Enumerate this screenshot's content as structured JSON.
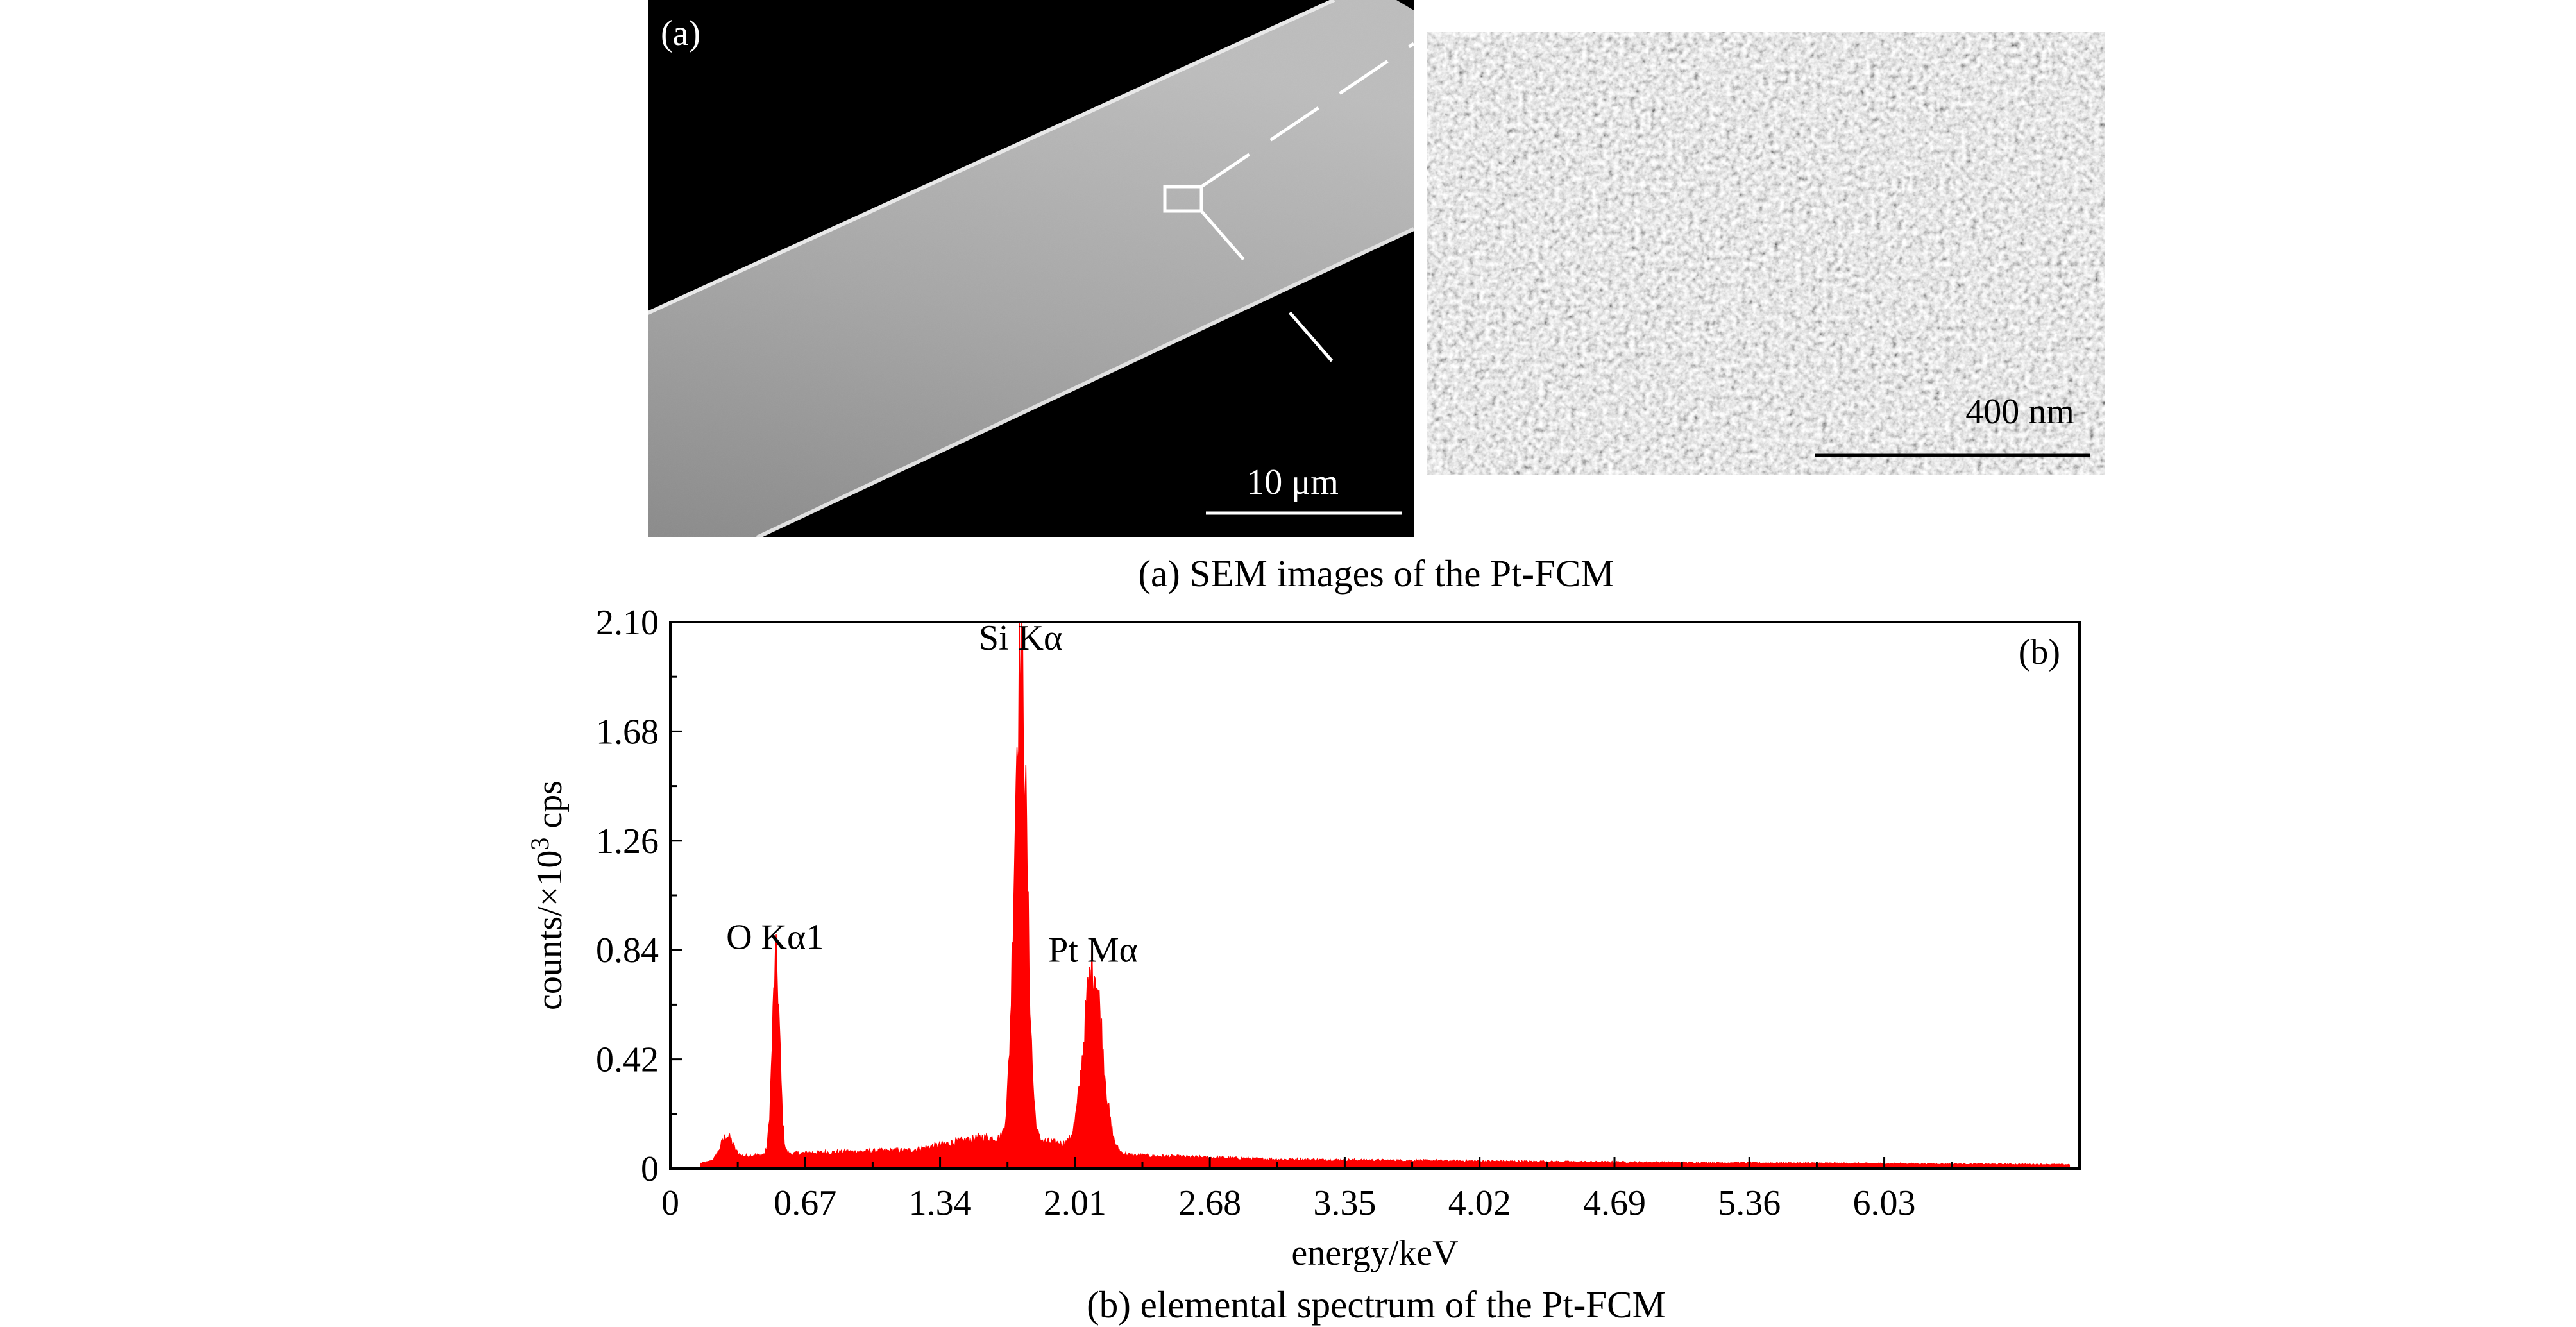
{
  "panel_a": {
    "label": "(a)",
    "scale_bar_left": "10 μm",
    "scale_bar_right": "400 nm",
    "caption": "(a) SEM images of the Pt-FCM"
  },
  "panel_b": {
    "caption": "(b) elemental spectrum of the Pt-FCM"
  },
  "chart_data": {
    "type": "area",
    "panel_label": "(b)",
    "xlabel": "energy/keV",
    "ylabel_prefix": "counts/×10",
    "ylabel_sup": "3",
    "ylabel_suffix": " cps",
    "xlim": [
      0,
      7.0
    ],
    "ylim": [
      0,
      2.1
    ],
    "xticks": [
      "0",
      "0.67",
      "1.34",
      "2.01",
      "2.68",
      "3.35",
      "4.02",
      "4.69",
      "5.36",
      "6.03"
    ],
    "yticks": [
      "0",
      "0.42",
      "0.84",
      "1.26",
      "1.68",
      "2.10"
    ],
    "color": "#ff0000",
    "annotations": [
      {
        "text": "O Kα1",
        "x": 0.52,
        "y": 0.8
      },
      {
        "text": "Si Kα",
        "x": 1.74,
        "y": 1.95
      },
      {
        "text": "Pt Mα",
        "x": 2.1,
        "y": 0.75
      }
    ],
    "peaks": [
      {
        "center": 0.28,
        "height": 0.09,
        "width": 0.03
      },
      {
        "center": 0.525,
        "height": 0.73,
        "width": 0.018
      },
      {
        "center": 1.74,
        "height": 1.85,
        "width": 0.03
      },
      {
        "center": 2.1,
        "height": 0.7,
        "width": 0.045
      }
    ],
    "background": [
      {
        "x": 0.15,
        "y": 0.02
      },
      {
        "x": 0.4,
        "y": 0.05
      },
      {
        "x": 0.7,
        "y": 0.06
      },
      {
        "x": 1.2,
        "y": 0.07
      },
      {
        "x": 1.55,
        "y": 0.12
      },
      {
        "x": 1.9,
        "y": 0.1
      },
      {
        "x": 2.3,
        "y": 0.05
      },
      {
        "x": 3.0,
        "y": 0.035
      },
      {
        "x": 4.5,
        "y": 0.025
      },
      {
        "x": 6.95,
        "y": 0.015
      }
    ]
  }
}
